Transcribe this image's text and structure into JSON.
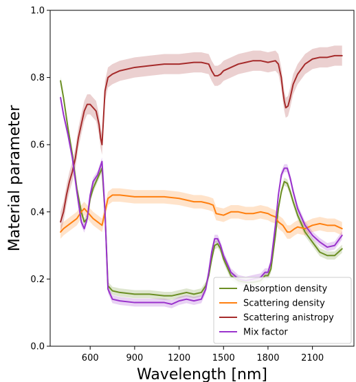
{
  "chart_data": {
    "type": "line",
    "title": "",
    "xlabel": "Wavelength [nm]",
    "ylabel": "Material parameter",
    "xlim": [
      330,
      2380
    ],
    "ylim": [
      0.0,
      1.0
    ],
    "xticks": [
      600,
      900,
      1200,
      1500,
      1800,
      2100
    ],
    "yticks": [
      0.0,
      0.2,
      0.4,
      0.6,
      0.8,
      1.0
    ],
    "xtick_labels": [
      "600",
      "900",
      "1200",
      "1500",
      "1800",
      "2100"
    ],
    "ytick_labels": [
      "0.0",
      "0.2",
      "0.4",
      "0.6",
      "0.8",
      "1.0"
    ],
    "grid": false,
    "legend_position": "bottom-right",
    "series": [
      {
        "name": "Absorption density",
        "color": "#6b8e23",
        "band": 0.012,
        "x": [
          400,
          420,
          450,
          480,
          510,
          540,
          560,
          580,
          600,
          620,
          650,
          680,
          700,
          720,
          750,
          800,
          900,
          1000,
          1100,
          1150,
          1200,
          1250,
          1300,
          1350,
          1380,
          1400,
          1420,
          1440,
          1460,
          1480,
          1500,
          1550,
          1600,
          1650,
          1700,
          1750,
          1780,
          1800,
          1820,
          1850,
          1870,
          1890,
          1910,
          1930,
          1950,
          1970,
          2000,
          2050,
          2100,
          2150,
          2200,
          2250,
          2300
        ],
        "y": [
          0.79,
          0.74,
          0.65,
          0.57,
          0.47,
          0.4,
          0.37,
          0.38,
          0.44,
          0.47,
          0.5,
          0.53,
          0.4,
          0.18,
          0.165,
          0.16,
          0.155,
          0.155,
          0.15,
          0.15,
          0.155,
          0.16,
          0.155,
          0.16,
          0.18,
          0.21,
          0.26,
          0.3,
          0.305,
          0.29,
          0.26,
          0.21,
          0.195,
          0.19,
          0.19,
          0.195,
          0.21,
          0.21,
          0.23,
          0.33,
          0.41,
          0.46,
          0.49,
          0.485,
          0.46,
          0.43,
          0.39,
          0.34,
          0.31,
          0.28,
          0.27,
          0.27,
          0.29
        ]
      },
      {
        "name": "Scattering density",
        "color": "#ff7f0e",
        "band": 0.02,
        "x": [
          400,
          420,
          450,
          480,
          510,
          540,
          560,
          580,
          600,
          620,
          650,
          680,
          700,
          720,
          750,
          800,
          900,
          1000,
          1100,
          1200,
          1300,
          1350,
          1400,
          1430,
          1450,
          1500,
          1550,
          1600,
          1650,
          1700,
          1750,
          1800,
          1820,
          1850,
          1870,
          1900,
          1930,
          1950,
          1980,
          2000,
          2050,
          2100,
          2150,
          2200,
          2250,
          2300
        ],
        "y": [
          0.34,
          0.35,
          0.36,
          0.37,
          0.38,
          0.4,
          0.41,
          0.4,
          0.39,
          0.38,
          0.37,
          0.36,
          0.4,
          0.44,
          0.45,
          0.45,
          0.445,
          0.445,
          0.445,
          0.44,
          0.43,
          0.43,
          0.425,
          0.42,
          0.395,
          0.39,
          0.4,
          0.4,
          0.395,
          0.395,
          0.4,
          0.395,
          0.39,
          0.385,
          0.37,
          0.36,
          0.34,
          0.34,
          0.35,
          0.355,
          0.35,
          0.36,
          0.365,
          0.36,
          0.36,
          0.35
        ]
      },
      {
        "name": "Scattering anistropy",
        "color": "#a52a2a",
        "band": 0.03,
        "x": [
          400,
          420,
          440,
          460,
          480,
          500,
          520,
          540,
          560,
          580,
          600,
          620,
          640,
          660,
          670,
          680,
          690,
          700,
          720,
          750,
          800,
          900,
          1000,
          1100,
          1200,
          1300,
          1350,
          1400,
          1420,
          1440,
          1460,
          1480,
          1500,
          1550,
          1600,
          1650,
          1700,
          1750,
          1800,
          1850,
          1870,
          1890,
          1900,
          1910,
          1920,
          1935,
          1950,
          1970,
          2000,
          2050,
          2100,
          2150,
          2200,
          2250,
          2300
        ],
        "y": [
          0.37,
          0.4,
          0.45,
          0.49,
          0.52,
          0.56,
          0.62,
          0.66,
          0.7,
          0.72,
          0.72,
          0.71,
          0.7,
          0.66,
          0.62,
          0.6,
          0.68,
          0.76,
          0.8,
          0.81,
          0.82,
          0.83,
          0.835,
          0.84,
          0.84,
          0.845,
          0.845,
          0.84,
          0.82,
          0.805,
          0.805,
          0.81,
          0.82,
          0.83,
          0.84,
          0.845,
          0.85,
          0.85,
          0.845,
          0.85,
          0.84,
          0.8,
          0.76,
          0.73,
          0.71,
          0.715,
          0.74,
          0.78,
          0.81,
          0.84,
          0.855,
          0.86,
          0.86,
          0.865,
          0.865
        ]
      },
      {
        "name": "Mix factor",
        "color": "#9932cc",
        "band": 0.012,
        "x": [
          400,
          420,
          450,
          480,
          510,
          540,
          560,
          580,
          600,
          620,
          650,
          680,
          700,
          720,
          750,
          800,
          900,
          1000,
          1100,
          1150,
          1200,
          1250,
          1300,
          1350,
          1380,
          1400,
          1420,
          1440,
          1460,
          1480,
          1500,
          1550,
          1600,
          1650,
          1700,
          1750,
          1780,
          1800,
          1820,
          1850,
          1870,
          1890,
          1910,
          1930,
          1950,
          1970,
          2000,
          2050,
          2100,
          2150,
          2200,
          2250,
          2300
        ],
        "y": [
          0.74,
          0.69,
          0.63,
          0.56,
          0.46,
          0.37,
          0.35,
          0.38,
          0.45,
          0.49,
          0.51,
          0.55,
          0.4,
          0.17,
          0.14,
          0.135,
          0.13,
          0.13,
          0.13,
          0.125,
          0.135,
          0.14,
          0.135,
          0.14,
          0.17,
          0.22,
          0.28,
          0.32,
          0.32,
          0.3,
          0.27,
          0.22,
          0.2,
          0.195,
          0.2,
          0.205,
          0.22,
          0.22,
          0.25,
          0.36,
          0.45,
          0.51,
          0.53,
          0.53,
          0.5,
          0.46,
          0.41,
          0.36,
          0.33,
          0.31,
          0.295,
          0.3,
          0.33
        ]
      }
    ]
  }
}
